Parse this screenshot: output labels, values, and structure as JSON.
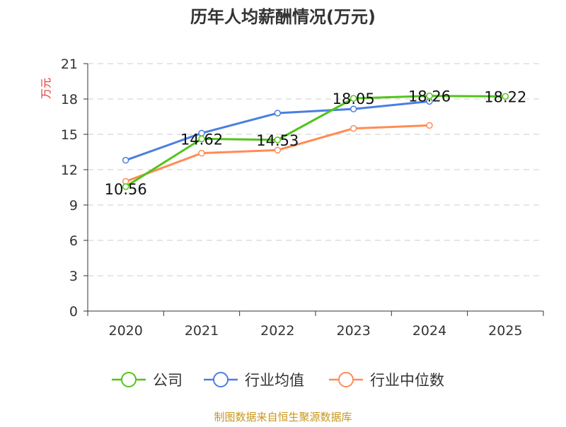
{
  "chart_data": {
    "type": "line",
    "title": "历年人均薪酬情况(万元)",
    "ylabel": "万元",
    "xlabel": "",
    "categories": [
      "2020",
      "2021",
      "2022",
      "2023",
      "2024",
      "2025"
    ],
    "ylim": [
      0,
      21
    ],
    "yticks": [
      0,
      3,
      6,
      9,
      12,
      15,
      18,
      21
    ],
    "grid": true,
    "legend_position": "bottom",
    "series": [
      {
        "name": "公司",
        "color": "#52c41a",
        "values": [
          10.56,
          14.62,
          14.53,
          18.05,
          18.26,
          18.22
        ],
        "labels": [
          "10.56",
          "14.62",
          "14.53",
          "18.05",
          "18.26",
          "18.22"
        ]
      },
      {
        "name": "行业均值",
        "color": "#4a7fe0",
        "values": [
          12.8,
          15.1,
          16.8,
          17.15,
          17.8,
          null
        ]
      },
      {
        "name": "行业中位数",
        "color": "#ff8c55",
        "values": [
          11.0,
          13.4,
          13.66,
          15.5,
          15.76,
          null
        ]
      }
    ]
  },
  "source": "制图数据来自恒生聚源数据库",
  "colors": {
    "title": "#333333",
    "ylabel": "#e03030",
    "source": "#c8961e",
    "axis": "#333333",
    "grid": "#cccccc"
  }
}
